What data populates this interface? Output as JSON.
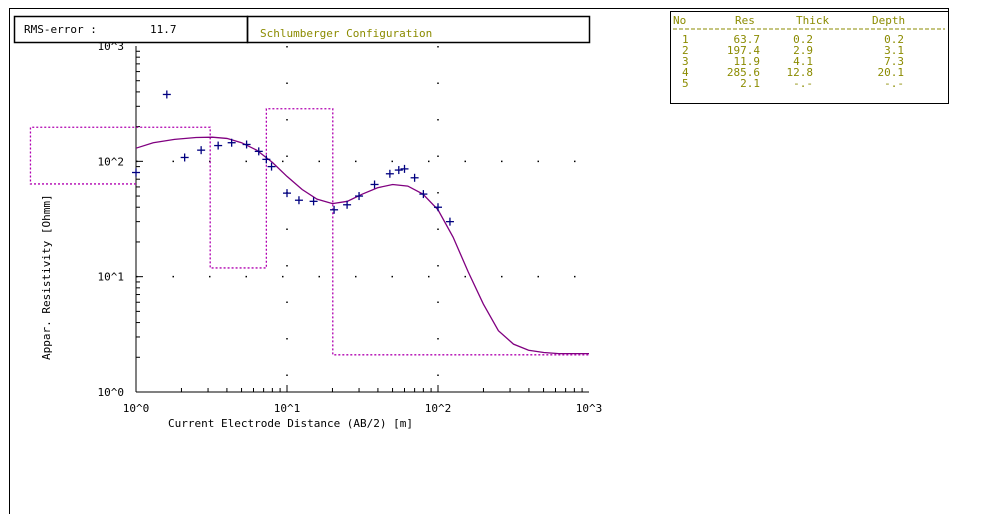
{
  "header": {
    "rms_label": "RMS-error :",
    "rms_value": "11.7",
    "title": "Schlumberger Configuration"
  },
  "layer_table": {
    "headers": [
      "No",
      "Res",
      "Thick",
      "Depth"
    ],
    "rows": [
      [
        "1",
        "63.7",
        "0.2",
        "0.2"
      ],
      [
        "2",
        "197.4",
        "2.9",
        "3.1"
      ],
      [
        "3",
        "11.9",
        "4.1",
        "7.3"
      ],
      [
        "4",
        "285.6",
        "12.8",
        "20.1"
      ],
      [
        "5",
        "2.1",
        "-.-",
        "-.-"
      ]
    ]
  },
  "colors": {
    "curve": "#800080",
    "model": "#b000b0",
    "points": "#000080",
    "table_text": "#8b8b00",
    "axes": "#000000"
  },
  "chart_data": {
    "type": "scatter",
    "title": "Schlumberger Configuration",
    "xlabel": "Current Electrode Distance (AB/2) [m]",
    "ylabel": "Appar. Resistivity [Ohmm]",
    "x_scale": "log",
    "y_scale": "log",
    "xlim": [
      1,
      1000
    ],
    "ylim": [
      1,
      1000
    ],
    "x_ticks": [
      "10^0",
      "10^1",
      "10^2",
      "10^3"
    ],
    "y_ticks": [
      "10^0",
      "10^1",
      "10^2",
      "10^3"
    ],
    "grid": "dotted",
    "series": [
      {
        "kind": "measured",
        "marker": "+",
        "x": [
          1.0,
          1.6,
          2.1,
          2.7,
          3.5,
          4.3,
          5.4,
          6.5,
          7.3,
          7.9,
          10.0,
          12.0,
          15.0,
          20.5,
          25.0,
          30.0,
          38.0,
          48.0,
          55.0,
          60.0,
          70.0,
          80.0,
          100.0,
          120.0
        ],
        "y": [
          80.0,
          380.0,
          108.0,
          125.0,
          137.0,
          145.0,
          140.0,
          122.0,
          104.0,
          90.0,
          53.0,
          46.0,
          45.0,
          38.0,
          42.0,
          50.0,
          63.0,
          78.0,
          84.0,
          86.0,
          72.0,
          52.0,
          40.0,
          30.0
        ]
      },
      {
        "kind": "calculated",
        "style": "line",
        "x": [
          1.0,
          1.3,
          1.8,
          2.5,
          3.2,
          4.0,
          5.0,
          6.3,
          8.0,
          10.0,
          12.6,
          15.8,
          20.0,
          25.1,
          31.6,
          39.8,
          50.1,
          63.1,
          79.4,
          100.0,
          125.9,
          158.5,
          199.5,
          251.2,
          316.2,
          398.1,
          501.2,
          631.0,
          794.3,
          1000.0
        ],
        "y": [
          130.0,
          145.0,
          155.0,
          161.0,
          162.0,
          158.0,
          145.0,
          125.0,
          98.0,
          74.0,
          57.0,
          47.0,
          43.0,
          45.0,
          52.0,
          59.0,
          63.0,
          61.0,
          52.0,
          38.0,
          22.0,
          11.0,
          5.8,
          3.4,
          2.6,
          2.3,
          2.2,
          2.15,
          2.15,
          2.15
        ]
      },
      {
        "kind": "layer_model",
        "style": "dotted-step",
        "depth": [
          0.2,
          3.1,
          7.3,
          20.1
        ],
        "resistivity": [
          63.7,
          197.4,
          11.9,
          285.6,
          2.1
        ]
      }
    ]
  }
}
